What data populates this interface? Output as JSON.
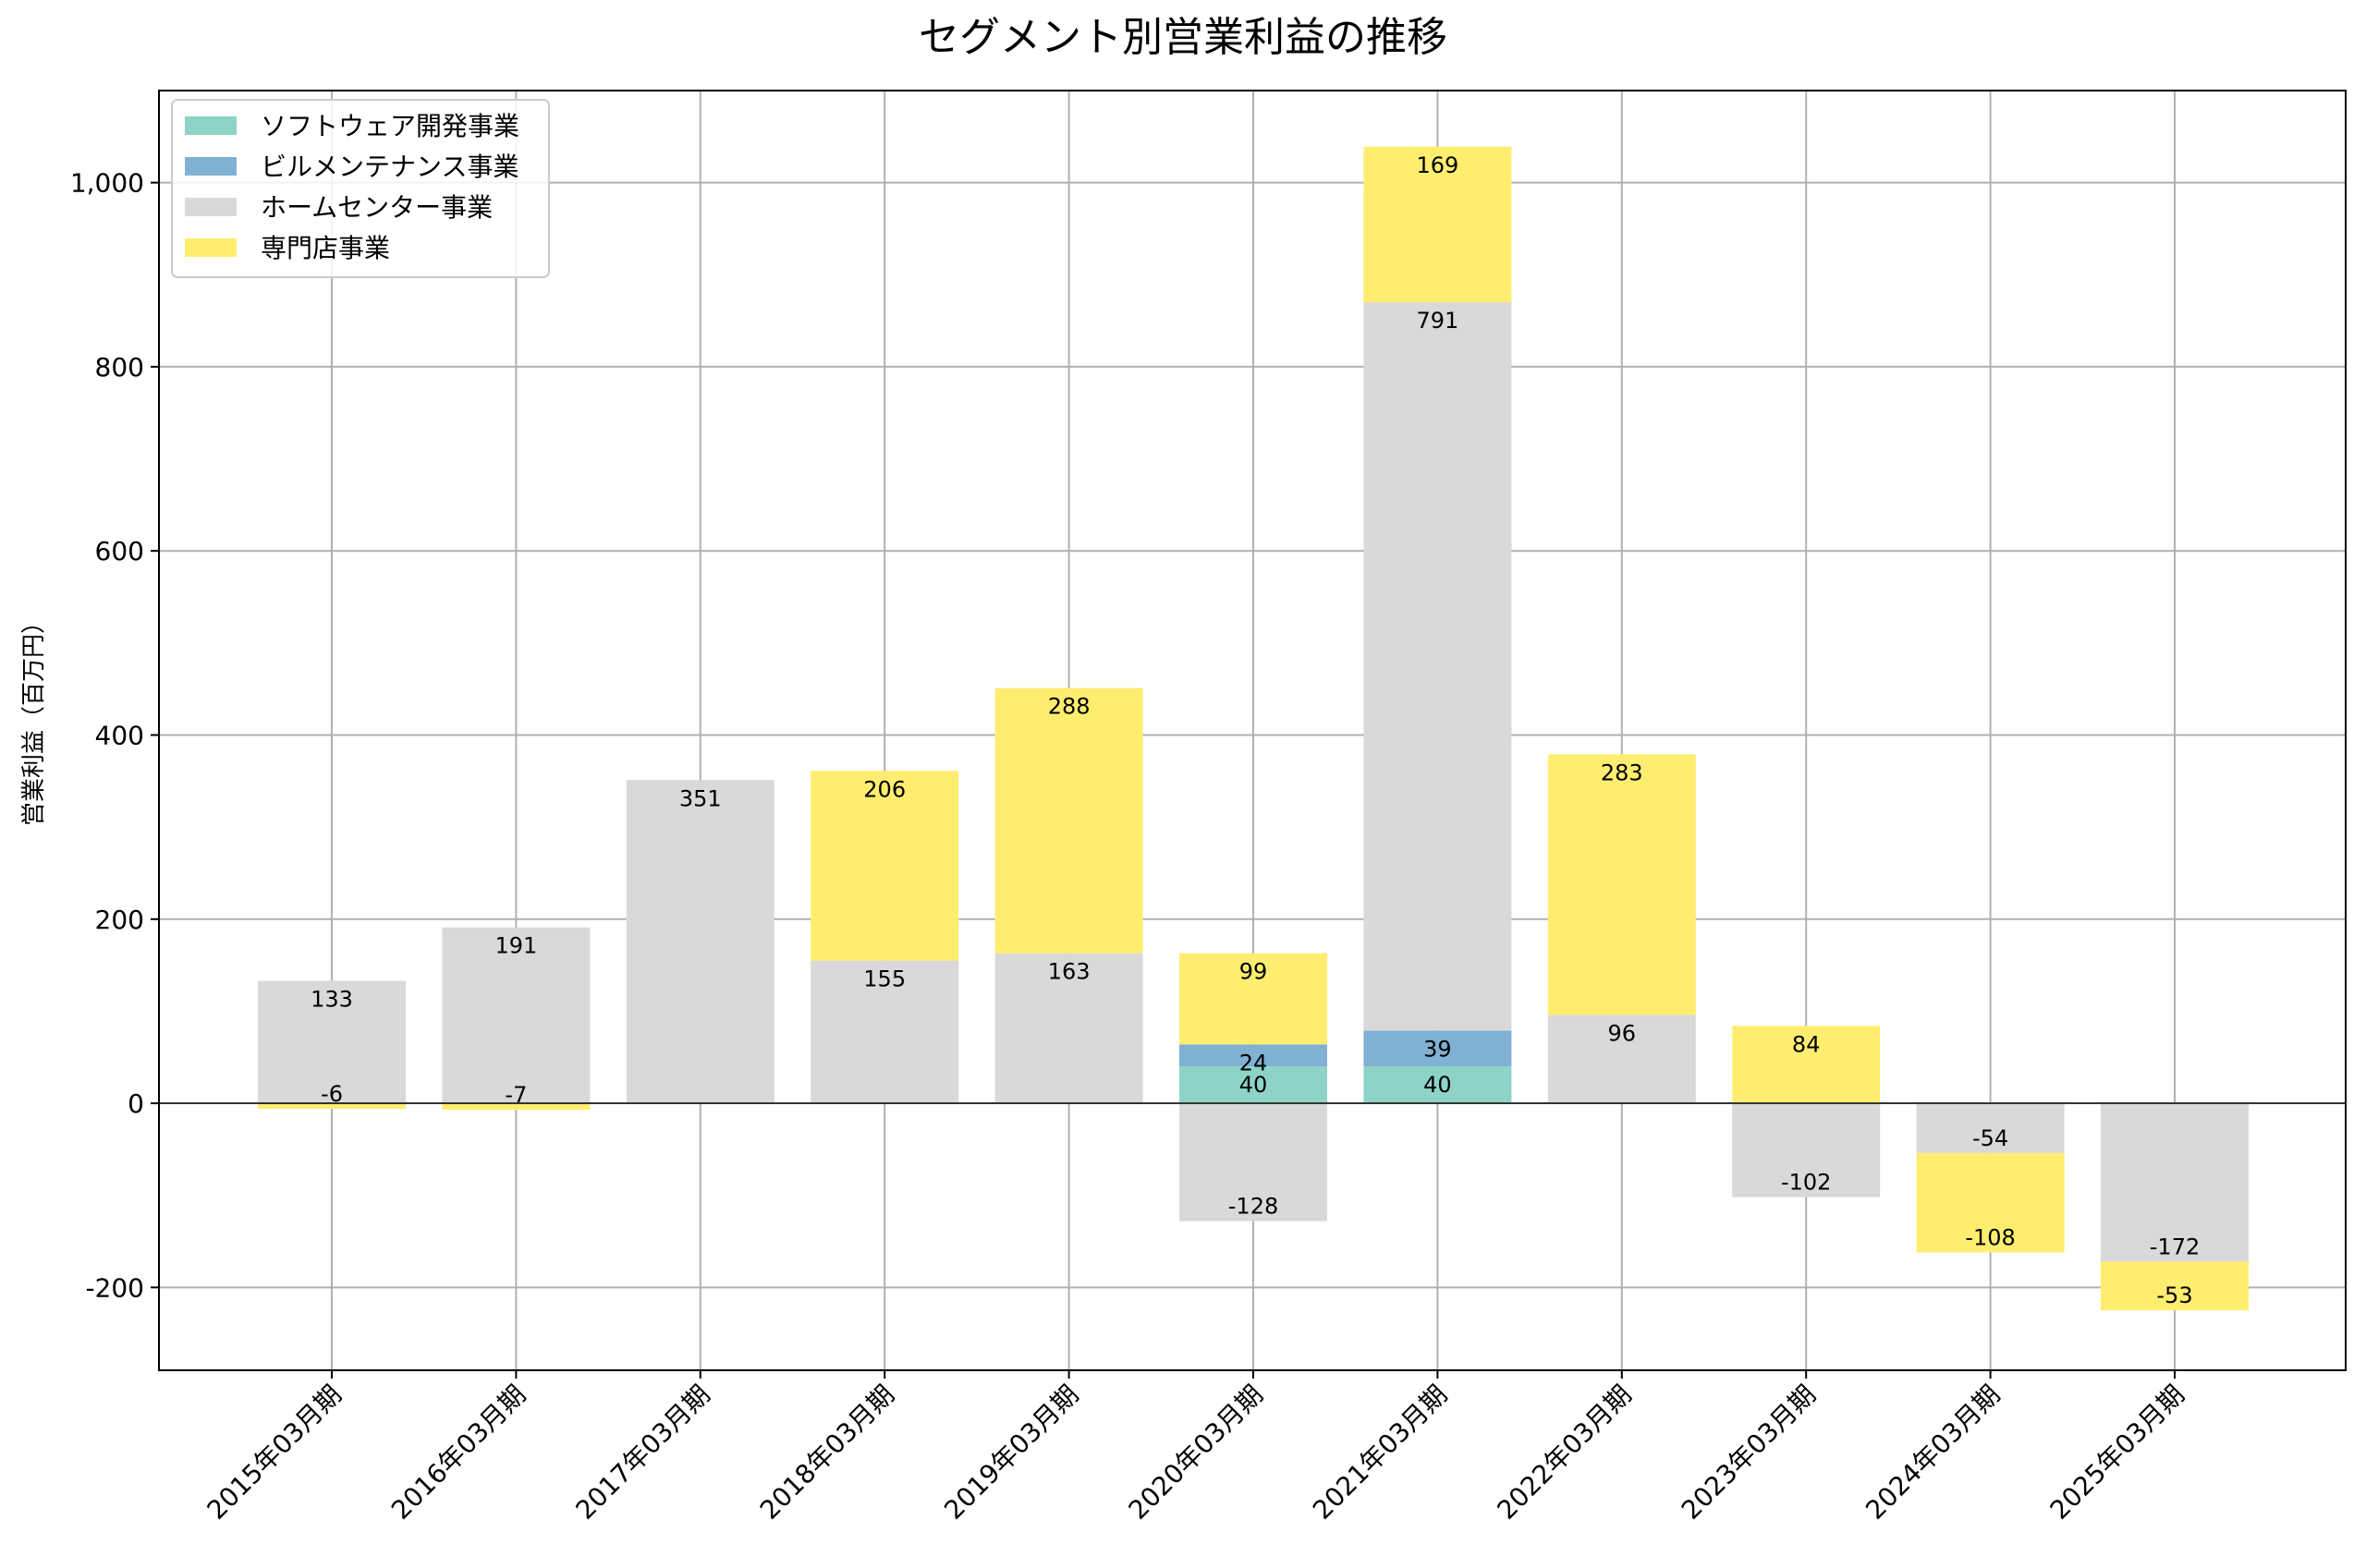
{
  "chart_data": {
    "type": "bar",
    "stacked": true,
    "title": "セグメント別営業利益の推移",
    "xlabel": "",
    "ylabel": "営業利益（百万円）",
    "ylim": [
      -290,
      1100
    ],
    "yticks": [
      -200,
      0,
      200,
      400,
      600,
      800,
      1000
    ],
    "ytick_labels": [
      "-200",
      "0",
      "200",
      "400",
      "600",
      "800",
      "1,000"
    ],
    "grid": true,
    "legend_position": "top-left",
    "categories": [
      "2015年03月期",
      "2016年03月期",
      "2017年03月期",
      "2018年03月期",
      "2019年03月期",
      "2020年03月期",
      "2021年03月期",
      "2022年03月期",
      "2023年03月期",
      "2024年03月期",
      "2025年03月期"
    ],
    "series": [
      {
        "name": "ソフトウェア開発事業",
        "color": "#8dd3c7",
        "values": [
          null,
          null,
          null,
          null,
          null,
          40,
          40,
          null,
          null,
          null,
          null
        ]
      },
      {
        "name": "ビルメンテナンス事業",
        "color": "#80b1d3",
        "values": [
          null,
          null,
          null,
          null,
          null,
          24,
          39,
          null,
          null,
          null,
          null
        ]
      },
      {
        "name": "ホームセンター事業",
        "color": "#d9d9d9",
        "values": [
          133,
          191,
          351,
          155,
          163,
          -128,
          791,
          96,
          -102,
          -54,
          -172
        ]
      },
      {
        "name": "専門店事業",
        "color": "#ffed6f",
        "values": [
          -6,
          -7,
          null,
          206,
          288,
          99,
          169,
          283,
          84,
          -108,
          -53
        ]
      }
    ]
  }
}
